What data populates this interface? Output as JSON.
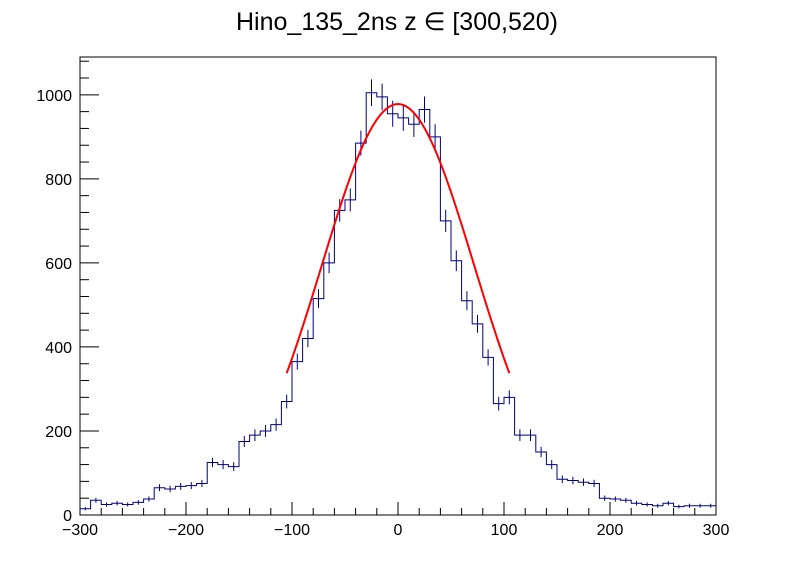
{
  "chart_data": {
    "type": "histogram",
    "title": "Hino_135_2ns z  ∈ [300,520)",
    "xlabel": "",
    "ylabel": "",
    "xlim": [
      -300,
      300
    ],
    "ylim": [
      0,
      1090
    ],
    "x_ticks": [
      -300,
      -200,
      -100,
      0,
      100,
      200,
      300
    ],
    "y_ticks": [
      0,
      200,
      400,
      600,
      800,
      1000
    ],
    "grid": false,
    "legend": "none",
    "bin_width": 10,
    "histogram_color": "#000080",
    "fit_color": "#ff0000",
    "bins": [
      {
        "x": -295,
        "y": 15
      },
      {
        "x": -285,
        "y": 35
      },
      {
        "x": -275,
        "y": 25
      },
      {
        "x": -265,
        "y": 28
      },
      {
        "x": -255,
        "y": 25
      },
      {
        "x": -245,
        "y": 30
      },
      {
        "x": -235,
        "y": 38
      },
      {
        "x": -225,
        "y": 65
      },
      {
        "x": -215,
        "y": 62
      },
      {
        "x": -205,
        "y": 68
      },
      {
        "x": -195,
        "y": 70
      },
      {
        "x": -185,
        "y": 75
      },
      {
        "x": -175,
        "y": 125
      },
      {
        "x": -165,
        "y": 120
      },
      {
        "x": -155,
        "y": 115
      },
      {
        "x": -145,
        "y": 175
      },
      {
        "x": -135,
        "y": 190
      },
      {
        "x": -125,
        "y": 200
      },
      {
        "x": -115,
        "y": 215
      },
      {
        "x": -105,
        "y": 270
      },
      {
        "x": -95,
        "y": 365
      },
      {
        "x": -85,
        "y": 420
      },
      {
        "x": -75,
        "y": 515
      },
      {
        "x": -65,
        "y": 600
      },
      {
        "x": -55,
        "y": 725
      },
      {
        "x": -45,
        "y": 750
      },
      {
        "x": -35,
        "y": 885
      },
      {
        "x": -25,
        "y": 1005
      },
      {
        "x": -15,
        "y": 995
      },
      {
        "x": -5,
        "y": 955
      },
      {
        "x": 5,
        "y": 945
      },
      {
        "x": 15,
        "y": 930
      },
      {
        "x": 25,
        "y": 965
      },
      {
        "x": 35,
        "y": 900
      },
      {
        "x": 45,
        "y": 700
      },
      {
        "x": 55,
        "y": 605
      },
      {
        "x": 65,
        "y": 510
      },
      {
        "x": 75,
        "y": 455
      },
      {
        "x": 85,
        "y": 375
      },
      {
        "x": 95,
        "y": 265
      },
      {
        "x": 105,
        "y": 280
      },
      {
        "x": 115,
        "y": 190
      },
      {
        "x": 125,
        "y": 190
      },
      {
        "x": 135,
        "y": 150
      },
      {
        "x": 145,
        "y": 120
      },
      {
        "x": 155,
        "y": 85
      },
      {
        "x": 165,
        "y": 82
      },
      {
        "x": 175,
        "y": 78
      },
      {
        "x": 185,
        "y": 75
      },
      {
        "x": 195,
        "y": 40
      },
      {
        "x": 205,
        "y": 38
      },
      {
        "x": 215,
        "y": 35
      },
      {
        "x": 225,
        "y": 28
      },
      {
        "x": 235,
        "y": 25
      },
      {
        "x": 245,
        "y": 22
      },
      {
        "x": 255,
        "y": 28
      },
      {
        "x": 265,
        "y": 20
      },
      {
        "x": 275,
        "y": 22
      },
      {
        "x": 285,
        "y": 22
      },
      {
        "x": 295,
        "y": 22
      }
    ],
    "fit": {
      "function": "gaussian",
      "x_range": [
        -105,
        105
      ],
      "amplitude": 978,
      "mean": 0,
      "sigma": 72
    }
  }
}
